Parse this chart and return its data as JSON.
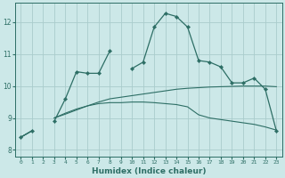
{
  "xlabel": "Humidex (Indice chaleur)",
  "bg_color": "#cce8e8",
  "grid_color": "#aacccc",
  "line_color": "#2d6e65",
  "x_values": [
    0,
    1,
    2,
    3,
    4,
    5,
    6,
    7,
    8,
    9,
    10,
    11,
    12,
    13,
    14,
    15,
    16,
    17,
    18,
    19,
    20,
    21,
    22,
    23
  ],
  "y1": [
    8.4,
    8.6,
    null,
    8.9,
    9.6,
    10.45,
    10.4,
    10.4,
    11.1,
    null,
    10.55,
    10.75,
    11.85,
    12.28,
    12.18,
    11.85,
    10.8,
    10.75,
    10.6,
    10.1,
    10.1,
    10.25,
    9.9,
    8.6
  ],
  "y2": [
    8.4,
    8.6,
    null,
    9.0,
    9.15,
    9.28,
    9.38,
    9.45,
    9.48,
    9.48,
    9.5,
    9.5,
    9.48,
    9.45,
    9.42,
    9.35,
    9.1,
    9.0,
    8.95,
    8.9,
    8.85,
    8.8,
    8.72,
    8.62
  ],
  "y3": [
    8.4,
    8.6,
    null,
    9.0,
    9.12,
    9.25,
    9.38,
    9.5,
    9.6,
    9.65,
    9.7,
    9.75,
    9.8,
    9.85,
    9.9,
    9.93,
    9.95,
    9.97,
    9.98,
    9.99,
    10.0,
    10.0,
    10.0,
    9.98
  ],
  "ylim": [
    7.8,
    12.6
  ],
  "xlim": [
    -0.5,
    23.5
  ],
  "yticks": [
    8,
    9,
    10,
    11,
    12
  ],
  "xticks": [
    0,
    1,
    2,
    3,
    4,
    5,
    6,
    7,
    8,
    9,
    10,
    11,
    12,
    13,
    14,
    15,
    16,
    17,
    18,
    19,
    20,
    21,
    22,
    23
  ]
}
